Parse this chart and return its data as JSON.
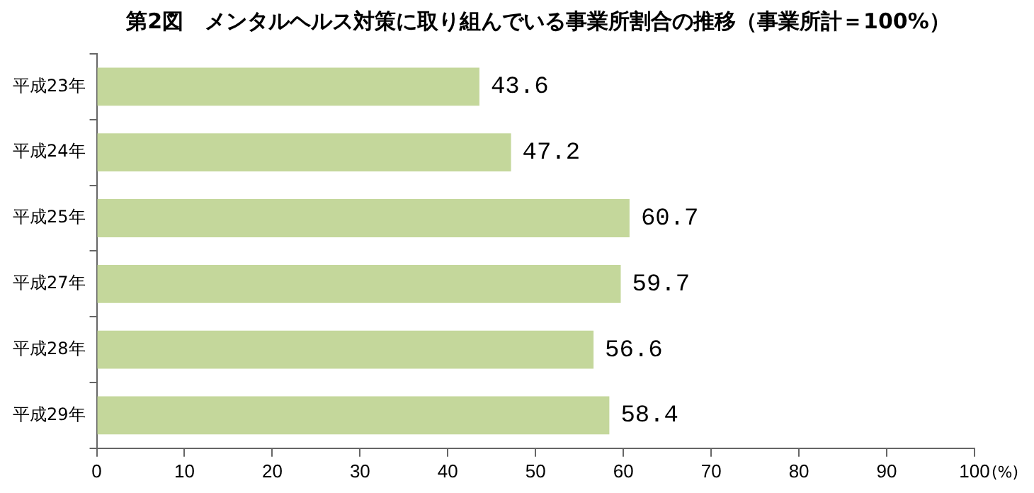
{
  "chart_data": {
    "type": "bar",
    "orientation": "horizontal",
    "title": "第2図　メンタルヘルス対策に取り組んでいる事業所割合の推移（事業所計＝100%）",
    "xlabel": "(%)",
    "categories": [
      "平成23年",
      "平成24年",
      "平成25年",
      "平成27年",
      "平成28年",
      "平成29年"
    ],
    "values": [
      43.6,
      47.2,
      60.7,
      59.7,
      56.6,
      58.4
    ],
    "color": "#c4d79b",
    "xlim": [
      0,
      100
    ],
    "xticks": [
      0,
      10,
      20,
      30,
      40,
      50,
      60,
      70,
      80,
      90,
      100
    ],
    "grid": false,
    "legend": false,
    "data_labels": true
  }
}
